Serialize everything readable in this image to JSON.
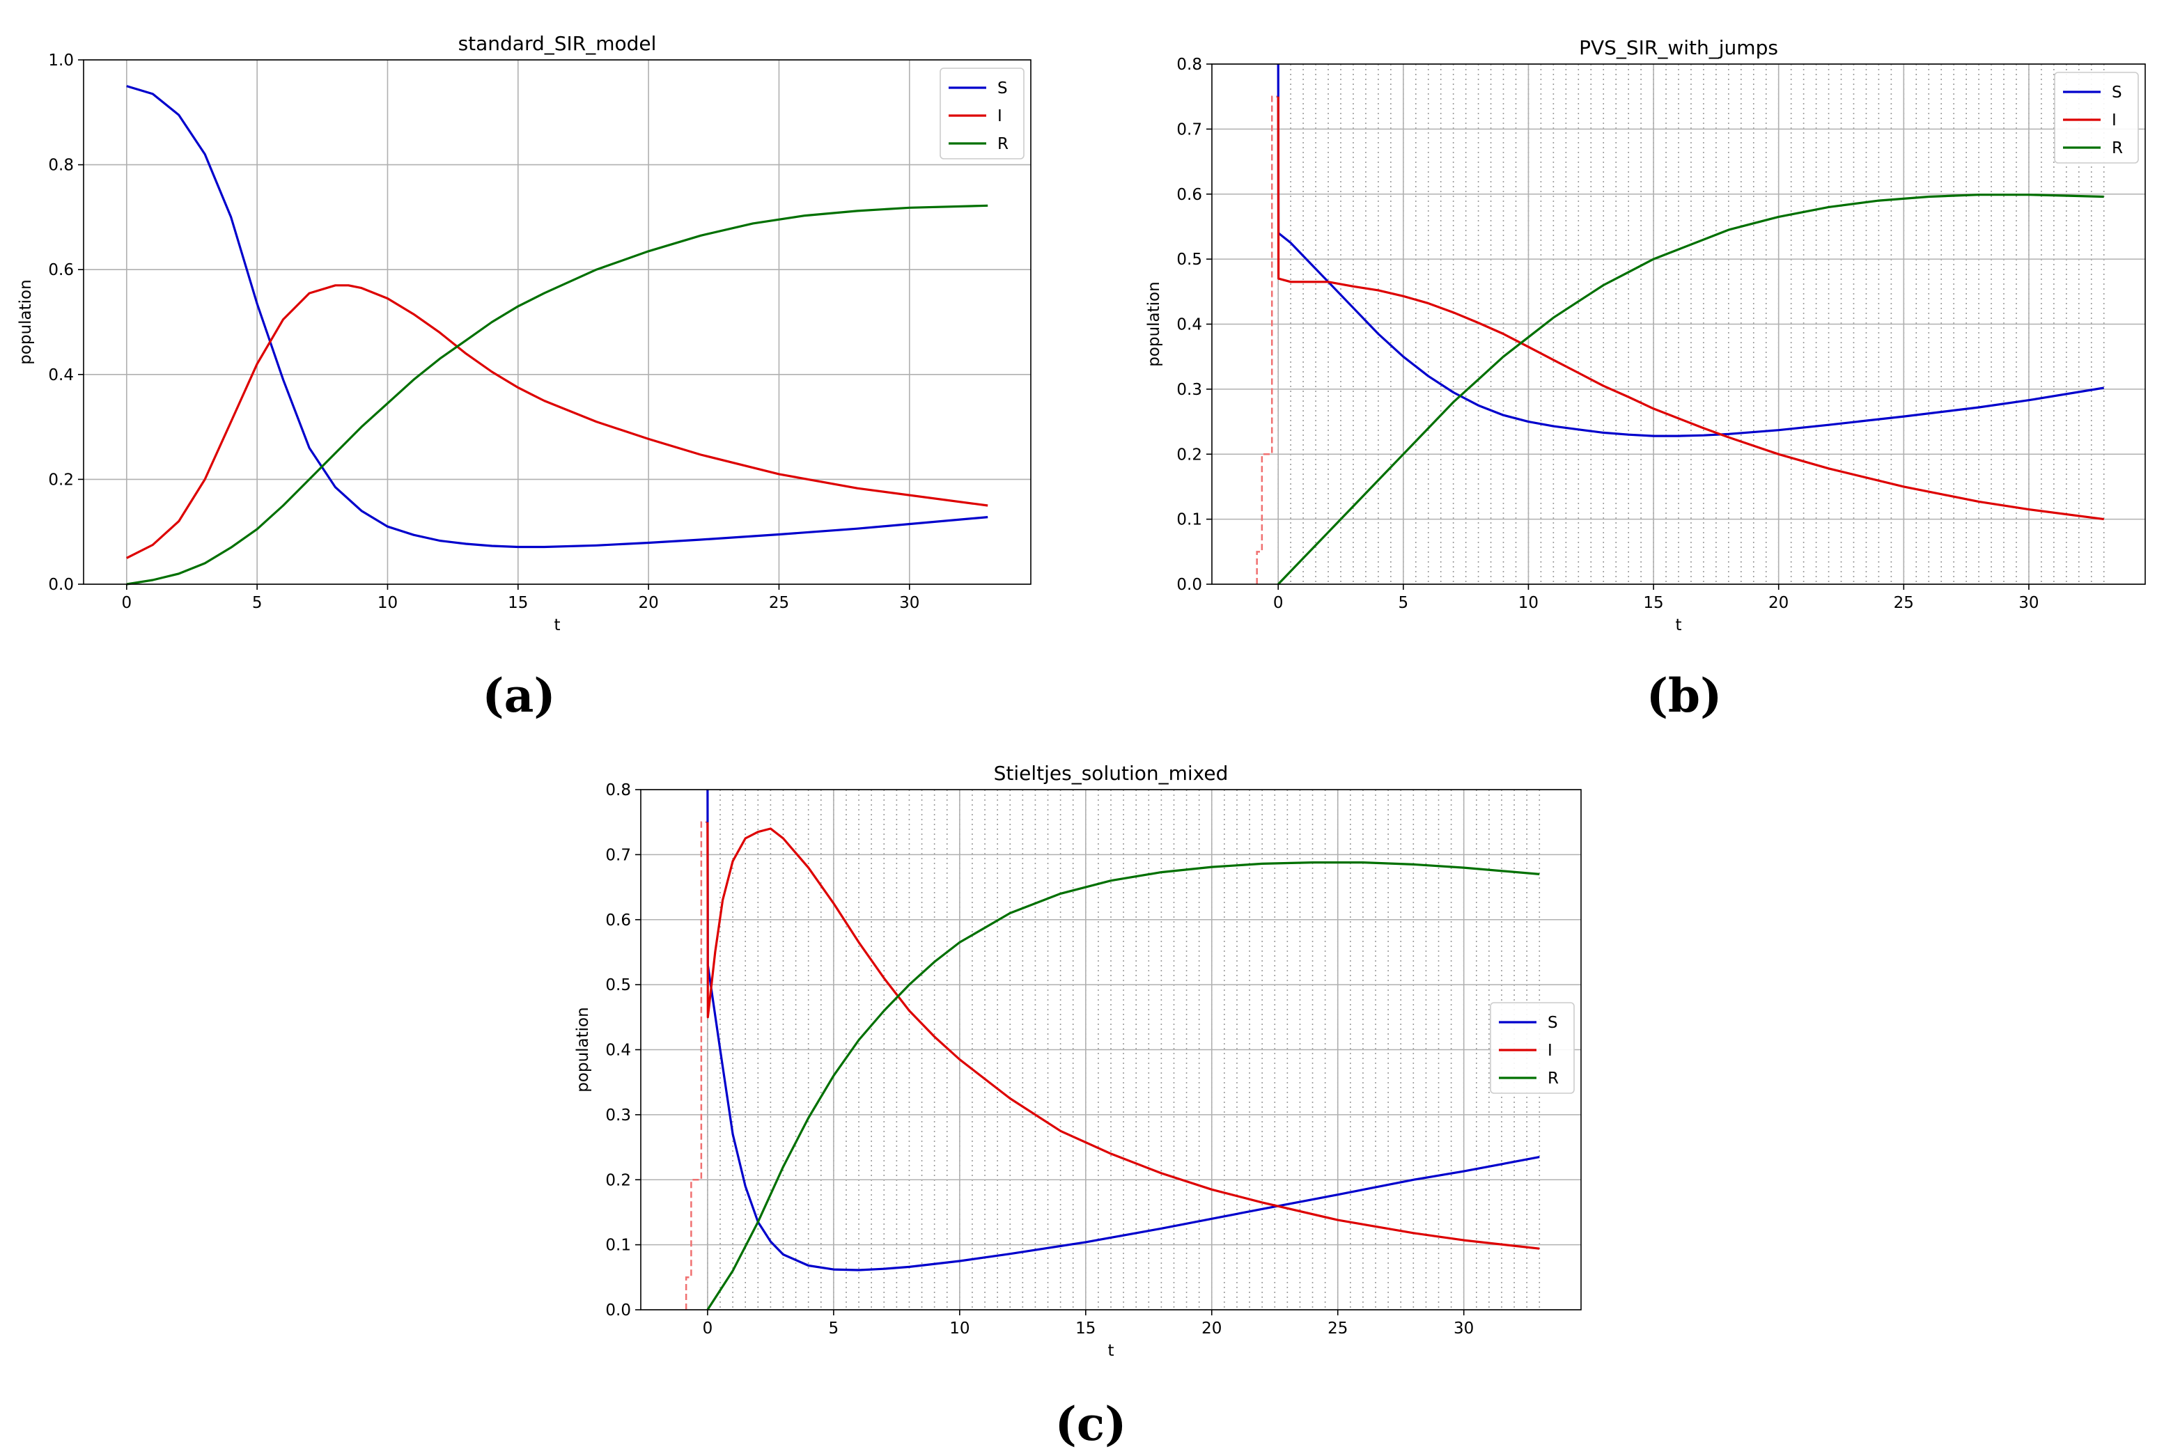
{
  "figure": {
    "series_colors": {
      "S": "#0000cc",
      "I": "#dd0000",
      "R": "#007000"
    }
  },
  "chart_data": [
    {
      "type": "line",
      "title": "standard_SIR_model",
      "caption": "(a)",
      "xlabel": "t",
      "ylabel": "population",
      "xlim": [
        -1.65,
        34.65
      ],
      "ylim": [
        0,
        1.0
      ],
      "xticks": [
        0,
        5,
        10,
        15,
        20,
        25,
        30
      ],
      "xtick_labels": [
        "0",
        "5",
        "10",
        "15",
        "20",
        "25",
        "30"
      ],
      "yticks": [
        0,
        0.2,
        0.4,
        0.6,
        0.8,
        1.0
      ],
      "ytick_labels": [
        "0.0",
        "0.2",
        "0.4",
        "0.6",
        "0.8",
        "1.0"
      ],
      "grid": true,
      "legend_position": "top-right",
      "series": [
        {
          "name": "S",
          "color": "#0000cc",
          "x": [
            0,
            1,
            2,
            3,
            4,
            5,
            6,
            7,
            8,
            9,
            10,
            11,
            12,
            13,
            14,
            15,
            16,
            18,
            20,
            22,
            25,
            28,
            33
          ],
          "y": [
            0.95,
            0.935,
            0.895,
            0.82,
            0.7,
            0.535,
            0.39,
            0.26,
            0.185,
            0.14,
            0.11,
            0.094,
            0.083,
            0.077,
            0.073,
            0.071,
            0.071,
            0.074,
            0.079,
            0.085,
            0.095,
            0.106,
            0.128
          ]
        },
        {
          "name": "I",
          "color": "#dd0000",
          "x": [
            0,
            1,
            2,
            3,
            4,
            5,
            6,
            7,
            8,
            8.5,
            9,
            10,
            11,
            12,
            13,
            14,
            15,
            16,
            18,
            20,
            22,
            25,
            28,
            33
          ],
          "y": [
            0.05,
            0.075,
            0.12,
            0.2,
            0.31,
            0.42,
            0.505,
            0.555,
            0.57,
            0.57,
            0.565,
            0.545,
            0.515,
            0.48,
            0.44,
            0.405,
            0.375,
            0.35,
            0.31,
            0.277,
            0.247,
            0.21,
            0.183,
            0.15
          ]
        },
        {
          "name": "R",
          "color": "#007000",
          "x": [
            0,
            1,
            2,
            3,
            4,
            5,
            6,
            7,
            8,
            9,
            10,
            11,
            12,
            13,
            14,
            15,
            16,
            18,
            20,
            22,
            24,
            26,
            28,
            30,
            33
          ],
          "y": [
            0,
            0.008,
            0.02,
            0.04,
            0.07,
            0.105,
            0.15,
            0.2,
            0.25,
            0.3,
            0.345,
            0.39,
            0.43,
            0.465,
            0.5,
            0.53,
            0.555,
            0.6,
            0.635,
            0.665,
            0.688,
            0.703,
            0.712,
            0.718,
            0.722
          ]
        }
      ]
    },
    {
      "type": "line",
      "title": "PVS_SIR_with_jumps",
      "caption": "(b)",
      "xlabel": "t",
      "ylabel": "population",
      "xlim": [
        -2.65,
        34.65
      ],
      "ylim": [
        0,
        0.8
      ],
      "xticks": [
        0,
        5,
        10,
        15,
        20,
        25,
        30
      ],
      "xtick_labels": [
        "0",
        "5",
        "10",
        "15",
        "20",
        "25",
        "30"
      ],
      "yticks": [
        0,
        0.1,
        0.2,
        0.3,
        0.4,
        0.5,
        0.6,
        0.7,
        0.8
      ],
      "ytick_labels": [
        "0.0",
        "0.1",
        "0.2",
        "0.3",
        "0.4",
        "0.5",
        "0.6",
        "0.7",
        "0.8"
      ],
      "grid": true,
      "dotted_time_grid": {
        "start": 0,
        "end": 33,
        "step": 0.5
      },
      "legend_position": "top-right",
      "pre_jump_I": {
        "x": [
          -0.85,
          -0.85,
          -0.65,
          -0.65,
          -0.45,
          -0.45,
          -0.25,
          -0.25,
          0
        ],
        "y": [
          0,
          0.05,
          0.05,
          0.2,
          0.2,
          0.2,
          0.2,
          0.75,
          0.75
        ]
      },
      "series": [
        {
          "name": "S",
          "color": "#0000cc",
          "x": [
            0,
            0.01,
            0.5,
            1,
            2,
            3,
            4,
            5,
            6,
            7,
            8,
            9,
            10,
            11,
            12,
            13,
            14,
            15,
            16,
            17,
            18,
            20,
            22,
            25,
            28,
            30,
            33
          ],
          "y": [
            0.8,
            0.54,
            0.525,
            0.505,
            0.465,
            0.425,
            0.385,
            0.35,
            0.32,
            0.295,
            0.275,
            0.26,
            0.25,
            0.243,
            0.238,
            0.233,
            0.23,
            0.228,
            0.228,
            0.229,
            0.231,
            0.237,
            0.245,
            0.258,
            0.272,
            0.283,
            0.302
          ]
        },
        {
          "name": "I",
          "color": "#dd0000",
          "x": [
            0,
            0.01,
            0.5,
            1,
            2,
            3,
            4,
            5,
            6,
            7,
            8,
            9,
            10,
            11,
            12,
            13,
            14,
            15,
            16,
            17,
            18,
            20,
            22,
            25,
            28,
            30,
            33
          ],
          "y": [
            0.75,
            0.47,
            0.465,
            0.465,
            0.465,
            0.458,
            0.452,
            0.443,
            0.432,
            0.418,
            0.402,
            0.385,
            0.365,
            0.345,
            0.325,
            0.305,
            0.288,
            0.27,
            0.255,
            0.24,
            0.226,
            0.2,
            0.178,
            0.15,
            0.127,
            0.115,
            0.1
          ]
        },
        {
          "name": "R",
          "color": "#007000",
          "x": [
            0,
            1,
            2,
            3,
            4,
            5,
            6,
            7,
            8,
            9,
            10,
            11,
            12,
            13,
            14,
            15,
            16,
            18,
            20,
            22,
            24,
            26,
            28,
            30,
            33
          ],
          "y": [
            0,
            0.04,
            0.08,
            0.12,
            0.16,
            0.2,
            0.24,
            0.28,
            0.315,
            0.35,
            0.38,
            0.41,
            0.435,
            0.46,
            0.48,
            0.5,
            0.515,
            0.545,
            0.565,
            0.58,
            0.59,
            0.596,
            0.599,
            0.599,
            0.596
          ]
        }
      ]
    },
    {
      "type": "line",
      "title": "Stieltjes_solution_mixed",
      "caption": "(c)",
      "xlabel": "t",
      "ylabel": "population",
      "xlim": [
        -2.65,
        34.65
      ],
      "ylim": [
        0,
        0.8
      ],
      "xticks": [
        0,
        5,
        10,
        15,
        20,
        25,
        30
      ],
      "xtick_labels": [
        "0",
        "5",
        "10",
        "15",
        "20",
        "25",
        "30"
      ],
      "yticks": [
        0,
        0.1,
        0.2,
        0.3,
        0.4,
        0.5,
        0.6,
        0.7,
        0.8
      ],
      "ytick_labels": [
        "0.0",
        "0.1",
        "0.2",
        "0.3",
        "0.4",
        "0.5",
        "0.6",
        "0.7",
        "0.8"
      ],
      "grid": true,
      "dotted_time_grid": {
        "start": 0,
        "end": 33,
        "step": 0.5
      },
      "legend_position": "center-right",
      "pre_jump_I": {
        "x": [
          -0.85,
          -0.85,
          -0.65,
          -0.65,
          -0.45,
          -0.45,
          -0.25,
          -0.25,
          0
        ],
        "y": [
          0,
          0.05,
          0.05,
          0.2,
          0.2,
          0.2,
          0.2,
          0.75,
          0.75
        ]
      },
      "series": [
        {
          "name": "S",
          "color": "#0000cc",
          "x": [
            0,
            0.01,
            0.5,
            1,
            1.5,
            2,
            2.5,
            3,
            4,
            5,
            6,
            7,
            8,
            10,
            12,
            15,
            18,
            20,
            22,
            25,
            28,
            30,
            33
          ],
          "y": [
            0.8,
            0.53,
            0.4,
            0.27,
            0.19,
            0.135,
            0.105,
            0.085,
            0.068,
            0.062,
            0.061,
            0.063,
            0.066,
            0.075,
            0.086,
            0.104,
            0.125,
            0.14,
            0.155,
            0.177,
            0.2,
            0.213,
            0.235
          ]
        },
        {
          "name": "I",
          "color": "#dd0000",
          "x": [
            0,
            0.01,
            0.3,
            0.6,
            1,
            1.5,
            2,
            2.5,
            3,
            4,
            5,
            6,
            7,
            8,
            9,
            10,
            12,
            14,
            16,
            18,
            20,
            22,
            25,
            28,
            30,
            33
          ],
          "y": [
            0.75,
            0.45,
            0.55,
            0.63,
            0.69,
            0.725,
            0.735,
            0.74,
            0.725,
            0.68,
            0.625,
            0.565,
            0.51,
            0.46,
            0.42,
            0.385,
            0.325,
            0.275,
            0.24,
            0.21,
            0.185,
            0.165,
            0.138,
            0.118,
            0.107,
            0.094
          ]
        },
        {
          "name": "R",
          "color": "#007000",
          "x": [
            0,
            1,
            2,
            3,
            4,
            5,
            6,
            7,
            8,
            9,
            10,
            12,
            14,
            16,
            18,
            20,
            22,
            24,
            26,
            28,
            30,
            33
          ],
          "y": [
            0,
            0.06,
            0.135,
            0.22,
            0.295,
            0.36,
            0.415,
            0.46,
            0.5,
            0.535,
            0.565,
            0.61,
            0.64,
            0.66,
            0.673,
            0.681,
            0.686,
            0.688,
            0.688,
            0.685,
            0.68,
            0.67
          ]
        }
      ]
    }
  ]
}
